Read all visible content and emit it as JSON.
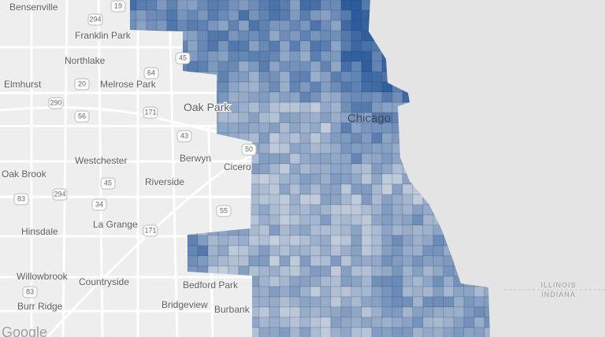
{
  "places": [
    "Bensenville",
    "Franklin Park",
    "Northlake",
    "Elmhurst",
    "Melrose Park",
    "Oak Park",
    "Chicago",
    "Westchester",
    "Berwyn",
    "Cicero",
    "Oak Brook",
    "Riverside",
    "Hinsdale",
    "La Grange",
    "Willowbrook",
    "Countryside",
    "Bedford Park",
    "Burr Ridge",
    "Bridgeview",
    "Burbank"
  ],
  "shields": [
    "294",
    "19",
    "45",
    "20",
    "64",
    "290",
    "56",
    "171",
    "43",
    "50",
    "45",
    "294",
    "34",
    "83",
    "171",
    "55",
    "83"
  ],
  "states": [
    "ILLINOIS",
    "INDIANA"
  ],
  "attribution": "Google"
}
